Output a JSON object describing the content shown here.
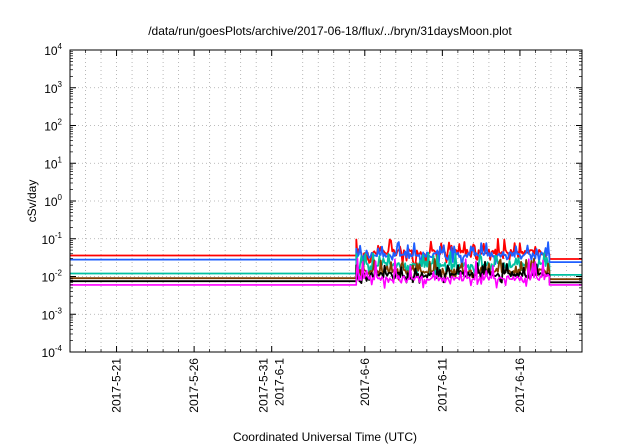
{
  "chart_data": {
    "type": "line",
    "title": "/data/run/goesPlots/archive/2017-06-18/flux/../bryn/31daysMoon.plot",
    "xlabel": "Coordinated Universal Time (UTC)",
    "ylabel": "cSv/day",
    "y_scale": "log",
    "ylim": [
      0.0001,
      10000
    ],
    "xlim": [
      "2017-05-18",
      "2017-06-20"
    ],
    "grid": true,
    "y_ticks": [
      {
        "value": 0.0001,
        "base": "10",
        "exp": "-4"
      },
      {
        "value": 0.001,
        "base": "10",
        "exp": "-3"
      },
      {
        "value": 0.01,
        "base": "10",
        "exp": "-2"
      },
      {
        "value": 0.1,
        "base": "10",
        "exp": "-1"
      },
      {
        "value": 1,
        "base": "10",
        "exp": "0"
      },
      {
        "value": 10,
        "base": "10",
        "exp": "1"
      },
      {
        "value": 100,
        "base": "10",
        "exp": "2"
      },
      {
        "value": 1000,
        "base": "10",
        "exp": "3"
      },
      {
        "value": 10000,
        "base": "10",
        "exp": "4"
      }
    ],
    "x_ticks": [
      {
        "date": "2017-05-21",
        "labels": [
          "2017-5-21"
        ]
      },
      {
        "date": "2017-05-26",
        "labels": [
          "2017-5-26"
        ]
      },
      {
        "date": "2017-05-31",
        "labels": [
          "2017-5-31",
          "2017-6-1"
        ]
      },
      {
        "date": "2017-06-06",
        "labels": [
          "2017-6-6"
        ]
      },
      {
        "date": "2017-06-11",
        "labels": [
          "2017-6-11"
        ]
      },
      {
        "date": "2017-06-16",
        "labels": [
          "2017-6-16"
        ]
      }
    ],
    "x_minor_gridlines": [
      "2017-05-19",
      "2017-05-20",
      "2017-05-22",
      "2017-05-23",
      "2017-05-24",
      "2017-05-25",
      "2017-05-27",
      "2017-05-28",
      "2017-05-29",
      "2017-05-30",
      "2017-06-02",
      "2017-06-03",
      "2017-06-04",
      "2017-06-05",
      "2017-06-07",
      "2017-06-08",
      "2017-06-09",
      "2017-06-10",
      "2017-06-12",
      "2017-06-13",
      "2017-06-14",
      "2017-06-15",
      "2017-06-17",
      "2017-06-18",
      "2017-06-19"
    ],
    "active_window": [
      "2017-06-05",
      "2017-06-17"
    ],
    "series": [
      {
        "color": "#ff0000",
        "baseline": 0.036,
        "active_level": 0.045,
        "active_max": 0.1,
        "active_min": 0.02,
        "after": 0.029
      },
      {
        "color": "#1f5fff",
        "baseline": 0.028,
        "active_level": 0.038,
        "active_max": 0.085,
        "active_min": 0.017,
        "after": 0.024
      },
      {
        "color": "#00c0a0",
        "baseline": 0.012,
        "active_level": 0.02,
        "active_max": 0.045,
        "active_min": 0.01,
        "after": 0.011
      },
      {
        "color": "#7f3f00",
        "baseline": 0.009,
        "active_level": 0.014,
        "active_max": 0.03,
        "active_min": 0.008,
        "after": 0.0085
      },
      {
        "color": "#000000",
        "baseline": 0.0075,
        "active_level": 0.011,
        "active_max": 0.025,
        "active_min": 0.0065,
        "after": 0.007
      },
      {
        "color": "#ff00ff",
        "baseline": 0.006,
        "active_level": 0.009,
        "active_max": 0.03,
        "active_min": 0.0045,
        "after": 0.006
      }
    ]
  }
}
